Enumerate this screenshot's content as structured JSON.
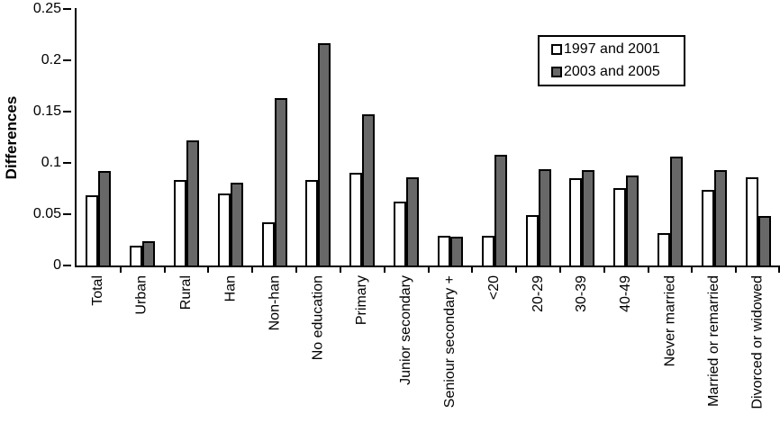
{
  "figure": {
    "background": "#ffffff",
    "axis_color": "#000000"
  },
  "chart_data": {
    "type": "bar",
    "title": "",
    "xlabel": "",
    "ylabel": "Differences",
    "ylim": [
      0,
      0.25
    ],
    "ytick_values": [
      0,
      0.05,
      0.1,
      0.15,
      0.2,
      0.25
    ],
    "ytick_labels": [
      "0",
      "0.05",
      "0.1",
      "0.15",
      "0.2",
      "0.25"
    ],
    "grid": false,
    "legend_position": "top-right",
    "categories": [
      "Total",
      "Urban",
      "Rural",
      "Han",
      "Non-han",
      "No education",
      "Primary",
      "Junior secondary",
      "Seniour secondary +",
      "<20",
      "20-29",
      "30-39",
      "40-49",
      "Never married",
      "Married or remarried",
      "Divorced or widowed"
    ],
    "series": [
      {
        "name": "1997 and 2001",
        "fill": "#ffffff",
        "border": "#000000",
        "values": [
          0.068,
          0.019,
          0.083,
          0.07,
          0.042,
          0.083,
          0.09,
          0.062,
          0.029,
          0.029,
          0.049,
          0.085,
          0.075,
          0.032,
          0.074,
          0.086
        ]
      },
      {
        "name": "2003 and 2005",
        "fill": "#686868",
        "border": "#000000",
        "values": [
          0.092,
          0.024,
          0.122,
          0.081,
          0.163,
          0.217,
          0.147,
          0.086,
          0.028,
          0.108,
          0.094,
          0.093,
          0.088,
          0.106,
          0.093,
          0.048
        ]
      }
    ]
  }
}
